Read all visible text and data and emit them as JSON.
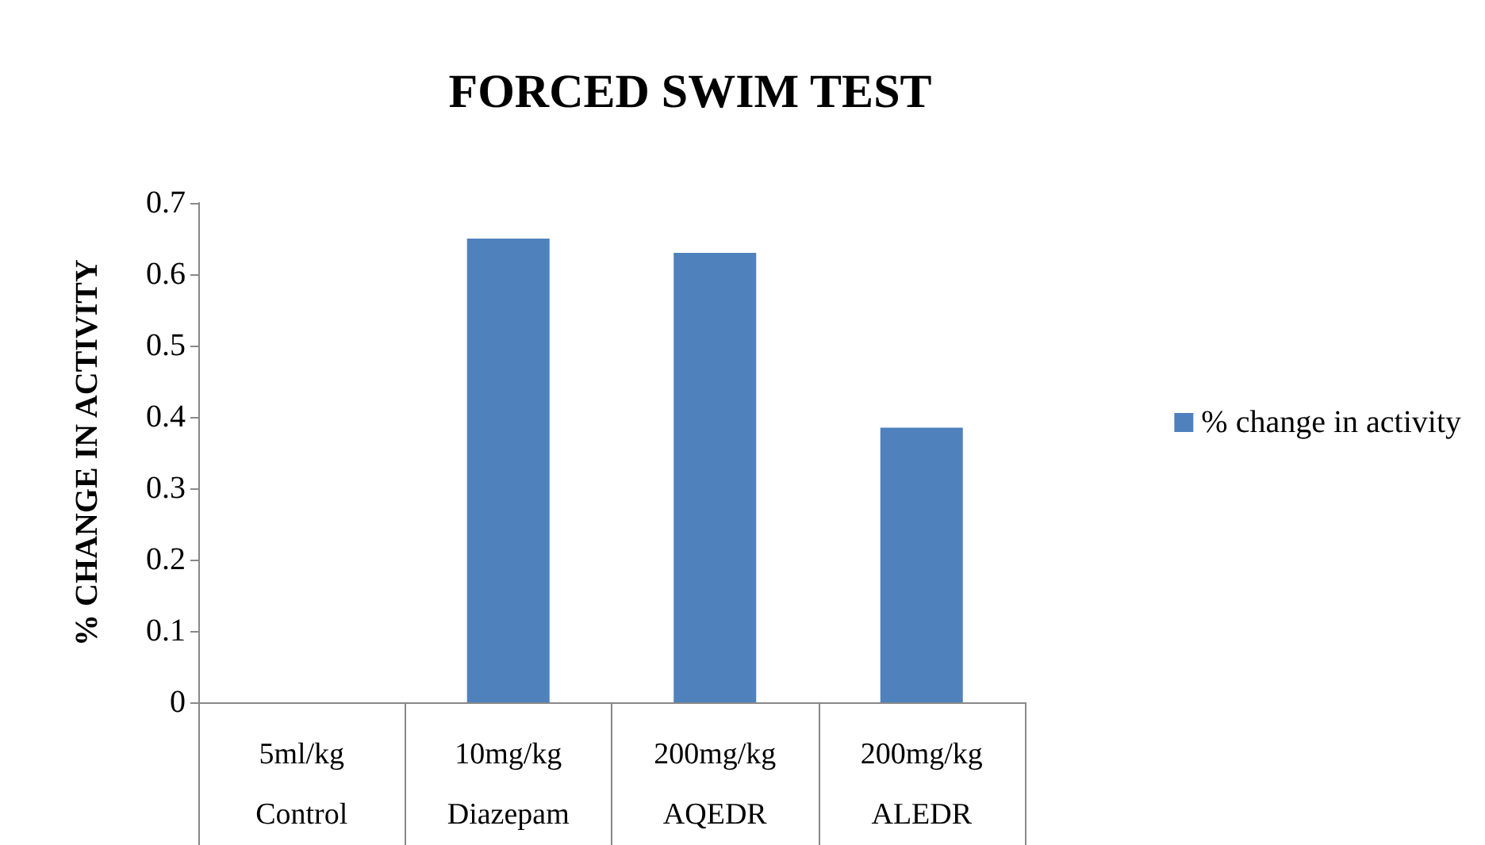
{
  "chart_data": {
    "type": "bar",
    "title": "FORCED SWIM TEST",
    "ylabel": "% CHANGE IN ACTIVITY",
    "categories": [
      "5ml/kg\nControl",
      "10mg/kg\nDiazepam",
      "200mg/kg\nAQEDR",
      "200mg/kg\nALEDR"
    ],
    "series": [
      {
        "name": "% change in activity",
        "color": "#4f81bd",
        "values": [
          0,
          0.65,
          0.63,
          0.385
        ]
      }
    ],
    "ylim": [
      0,
      0.7
    ],
    "yticks": [
      0,
      0.1,
      0.2,
      0.3,
      0.4,
      0.5,
      0.6,
      0.7
    ],
    "grid": false,
    "legend": "right"
  }
}
